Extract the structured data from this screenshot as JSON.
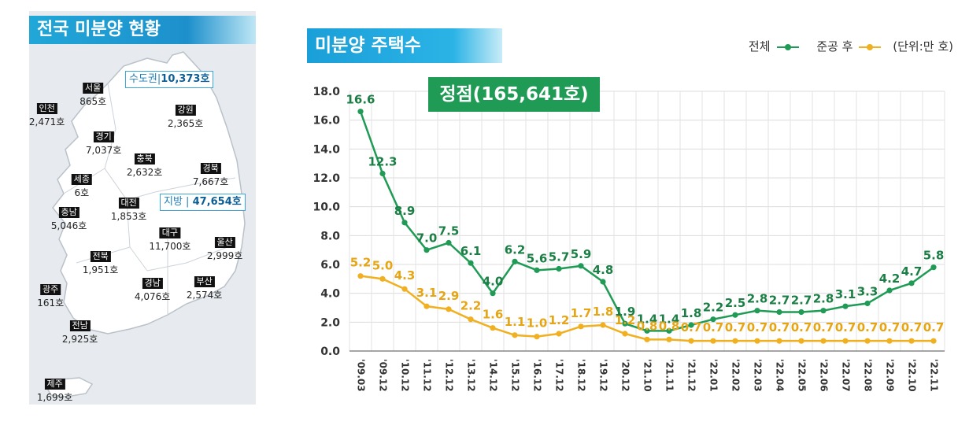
{
  "map": {
    "title": "전국 미분양 현황",
    "capital_label": "수도권",
    "capital_value": "10,373호",
    "local_label": "지방",
    "local_value": "47,654호",
    "regions": [
      {
        "name": "서울",
        "value": "865호"
      },
      {
        "name": "인천",
        "value": "2,471호"
      },
      {
        "name": "강원",
        "value": "2,365호"
      },
      {
        "name": "경기",
        "value": "7,037호"
      },
      {
        "name": "충북",
        "value": "2,632호"
      },
      {
        "name": "세종",
        "value": "6호"
      },
      {
        "name": "경북",
        "value": "7,667호"
      },
      {
        "name": "대전",
        "value": "1,853호"
      },
      {
        "name": "충남",
        "value": "5,046호"
      },
      {
        "name": "대구",
        "value": "11,700호"
      },
      {
        "name": "울산",
        "value": "2,999호"
      },
      {
        "name": "전북",
        "value": "1,951호"
      },
      {
        "name": "광주",
        "value": "161호"
      },
      {
        "name": "경남",
        "value": "4,076호"
      },
      {
        "name": "부산",
        "value": "2,574호"
      },
      {
        "name": "전남",
        "value": "2,925호"
      },
      {
        "name": "제주",
        "value": "1,699호"
      }
    ],
    "colors": {
      "land": "#ffffff",
      "border": "#b9c1c9",
      "sea": "#e7ebef"
    }
  },
  "chart": {
    "title": "미분양 주택수",
    "peak_label": "정점(165,641호)",
    "legend": {
      "total": "전체",
      "after": "준공 후",
      "unit": "(단위:만 호)"
    }
  },
  "chart_data": {
    "type": "line",
    "title": "미분양 주택수",
    "categories": [
      "'09.03",
      "'09.12",
      "'10.12",
      "'11.12",
      "'12.12",
      "'13.12",
      "'14.12",
      "'15.12",
      "'16.12",
      "'17.12",
      "'18.12",
      "'19.12",
      "'20.12",
      "'21.10",
      "'21.11",
      "'21.12",
      "'22.01",
      "'22.02",
      "'22.03",
      "'22.04",
      "'22.05",
      "'22.06",
      "'22.07",
      "'22.08",
      "'22.09",
      "'22.10",
      "'22.11"
    ],
    "series": [
      {
        "name": "전체",
        "color": "#1f9b55",
        "values": [
          16.6,
          12.3,
          8.9,
          7.0,
          7.5,
          6.1,
          4.0,
          6.2,
          5.6,
          5.7,
          5.9,
          4.8,
          1.9,
          1.4,
          1.4,
          1.8,
          2.2,
          2.5,
          2.8,
          2.7,
          2.7,
          2.8,
          3.1,
          3.3,
          4.2,
          4.7,
          5.8
        ]
      },
      {
        "name": "준공 후",
        "color": "#f0b020",
        "values": [
          5.2,
          5.0,
          4.3,
          3.1,
          2.9,
          2.2,
          1.6,
          1.1,
          1.0,
          1.2,
          1.7,
          1.8,
          1.2,
          0.8,
          0.8,
          0.7,
          0.7,
          0.7,
          0.7,
          0.7,
          0.7,
          0.7,
          0.7,
          0.7,
          0.7,
          0.7,
          0.7
        ]
      }
    ],
    "ylim": [
      0,
      18
    ],
    "yticks": [
      "0.0",
      "2.0",
      "4.0",
      "6.0",
      "8.0",
      "10.0",
      "12.0",
      "14.0",
      "16.0",
      "18.0"
    ],
    "grid": true,
    "legend_position": "top-right",
    "unit": "(단위:만 호)"
  }
}
